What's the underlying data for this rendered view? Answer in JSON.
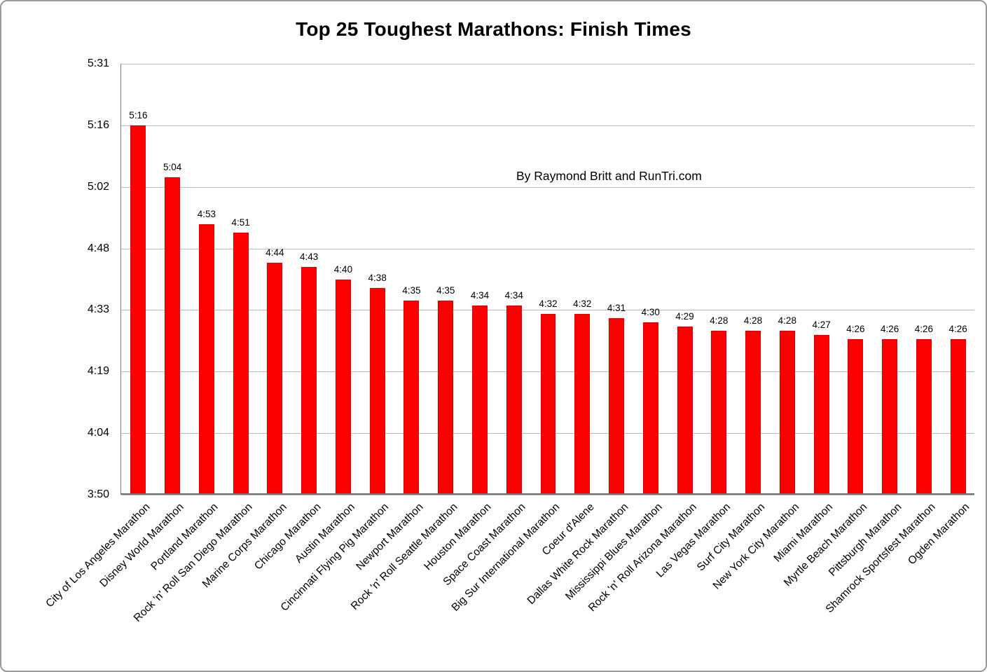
{
  "chart_data": {
    "type": "bar",
    "title": "Top 25 Toughest Marathons: Finish Times",
    "annotation": "By Raymond Britt and RunTri.com",
    "bar_color": "#fc0000",
    "grid": true,
    "legend": "none",
    "xlabel": "",
    "ylabel": "",
    "ylim_labels": [
      "3:50",
      "5:31"
    ],
    "ylim_minutes": [
      230,
      330.8
    ],
    "y_ticks": [
      {
        "label": "5:31",
        "minutes": 330.8
      },
      {
        "label": "5:16",
        "minutes": 316.4
      },
      {
        "label": "5:02",
        "minutes": 302.0
      },
      {
        "label": "4:48",
        "minutes": 287.6
      },
      {
        "label": "4:33",
        "minutes": 273.2
      },
      {
        "label": "4:19",
        "minutes": 258.8
      },
      {
        "label": "4:04",
        "minutes": 244.4
      },
      {
        "label": "3:50",
        "minutes": 230.0
      }
    ],
    "categories": [
      "City of Los Angeles Marathon",
      "Disney World Marathon",
      "Portland Marathon",
      "Rock 'n' Roll San Diego Marathon",
      "Marine Corps Marathon",
      "Chicago Marathon",
      "Austin Marathon",
      "Cincinnati Flying Pig Marathon",
      "Newport Marathon",
      "Rock 'n' Roll Seattle Marathon",
      "Houston Marathon",
      "Space Coast Marathon",
      "Big Sur International Marathon",
      "Coeur d'Alene",
      "Dallas White Rock Marathon",
      "Mississippi Blues Marathon",
      "Rock 'n' Roll Arizona Marathon",
      "Las Vegas Marathon",
      "Surf City Marathon",
      "New York City Marathon",
      "Miami Marathon",
      "Myrtle Beach Marathon",
      "Pittsburgh Marathon",
      "Shamrock Sportsfest Marathon",
      "Ogden Marathon"
    ],
    "values_label": [
      "5:16",
      "5:04",
      "4:53",
      "4:51",
      "4:44",
      "4:43",
      "4:40",
      "4:38",
      "4:35",
      "4:35",
      "4:34",
      "4:34",
      "4:32",
      "4:32",
      "4:31",
      "4:30",
      "4:29",
      "4:28",
      "4:28",
      "4:28",
      "4:27",
      "4:26",
      "4:26",
      "4:26",
      "4:26"
    ],
    "values_minutes": [
      316,
      304,
      293,
      291,
      284,
      283,
      280,
      278,
      275,
      275,
      274,
      274,
      272,
      272,
      271,
      270,
      269,
      268,
      268,
      268,
      267,
      266,
      266,
      266,
      266
    ]
  }
}
